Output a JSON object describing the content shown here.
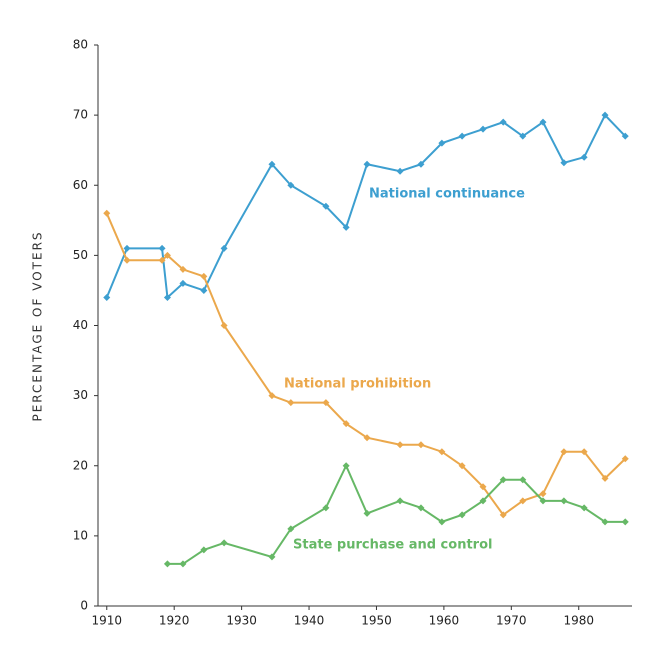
{
  "chart_data": {
    "type": "line",
    "y_label": "PERCENTAGE OF VOTERS",
    "x": [
      1910,
      1913,
      1918.2,
      1919,
      1921.3,
      1924.4,
      1927.4,
      1934.5,
      1937.3,
      1942.5,
      1945.5,
      1948.6,
      1953.5,
      1956.6,
      1959.7,
      1962.7,
      1965.8,
      1968.8,
      1971.7,
      1974.7,
      1977.8,
      1980.8,
      1983.9,
      1986.9
    ],
    "series": [
      {
        "name": "National continuance",
        "color": "#3d9fd0",
        "values": [
          44,
          51,
          51,
          44,
          46,
          45,
          51,
          63,
          60,
          57,
          54,
          63,
          62,
          63,
          66,
          67,
          68,
          69,
          67,
          69,
          63.2,
          64,
          70,
          67
        ]
      },
      {
        "name": "National prohibition",
        "color": "#eba84c",
        "values": [
          56,
          49.3,
          49.3,
          50,
          48,
          47,
          40,
          30,
          29,
          29,
          26,
          24,
          23,
          23,
          22,
          20,
          17,
          13,
          15,
          16,
          22,
          22,
          18.2,
          21
        ]
      },
      {
        "name": "State purchase and control",
        "color": "#66b866",
        "values": [
          null,
          null,
          null,
          6,
          6,
          8,
          9,
          7,
          11,
          14,
          20,
          13.2,
          15,
          14,
          12,
          13,
          15,
          18,
          18,
          15,
          15,
          14,
          12,
          12
        ]
      }
    ],
    "xlim": [
      1908.7,
      1987.9
    ],
    "xticks": [
      1910,
      1920,
      1930,
      1940,
      1950,
      1960,
      1970,
      1980
    ],
    "ylim": [
      0,
      80
    ],
    "yticks": [
      0,
      10,
      20,
      30,
      40,
      50,
      60,
      70,
      80
    ],
    "grid": false
  }
}
